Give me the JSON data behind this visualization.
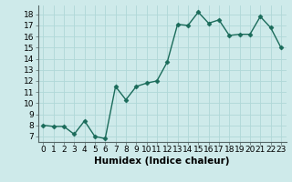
{
  "x": [
    0,
    1,
    2,
    3,
    4,
    5,
    6,
    7,
    8,
    9,
    10,
    11,
    12,
    13,
    14,
    15,
    16,
    17,
    18,
    19,
    20,
    21,
    22,
    23
  ],
  "y": [
    8.0,
    7.9,
    7.9,
    7.2,
    8.4,
    7.0,
    6.8,
    11.5,
    10.3,
    11.5,
    11.8,
    12.0,
    13.7,
    17.1,
    17.0,
    18.2,
    17.2,
    17.5,
    16.1,
    16.2,
    16.2,
    17.8,
    16.8,
    15.0
  ],
  "line_color": "#1a6b5a",
  "marker": "D",
  "marker_size": 2.5,
  "bg_color": "#ceeaea",
  "grid_color": "#b0d8d8",
  "xlabel": "Humidex (Indice chaleur)",
  "ylim": [
    6.5,
    18.8
  ],
  "xlim": [
    -0.5,
    23.5
  ],
  "yticks": [
    7,
    8,
    9,
    10,
    11,
    12,
    13,
    14,
    15,
    16,
    17,
    18
  ],
  "xticks": [
    0,
    1,
    2,
    3,
    4,
    5,
    6,
    7,
    8,
    9,
    10,
    11,
    12,
    13,
    14,
    15,
    16,
    17,
    18,
    19,
    20,
    21,
    22,
    23
  ],
  "xlabel_fontsize": 7.5,
  "tick_fontsize": 6.5,
  "linewidth": 1.0
}
